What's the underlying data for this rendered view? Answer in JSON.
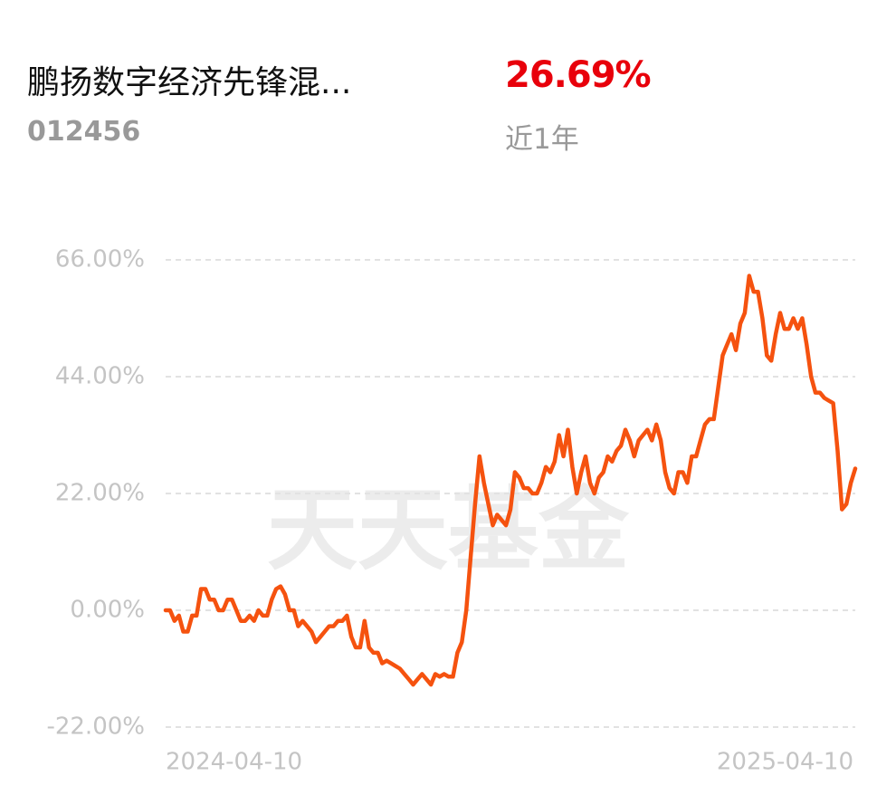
{
  "header": {
    "title": "鹏扬数字经济先锋混...",
    "code": "012456",
    "return": "26.69%",
    "period": "近1年"
  },
  "watermark": "天天基金",
  "chart_data": {
    "type": "line",
    "categories": [
      "2024-04-10",
      null,
      null,
      null,
      null,
      null,
      null,
      null,
      null,
      null,
      null,
      null,
      null,
      null,
      null,
      null,
      null,
      null,
      null,
      null,
      null,
      null,
      null,
      null,
      null,
      null,
      null,
      null,
      null,
      null,
      null,
      null,
      null,
      null,
      null,
      null,
      null,
      null,
      null,
      null,
      null,
      null,
      null,
      null,
      null,
      null,
      null,
      null,
      null,
      null,
      null,
      null,
      null,
      null,
      null,
      null,
      null,
      null,
      null,
      null,
      null,
      null,
      null,
      null,
      null,
      null,
      null,
      null,
      null,
      null,
      null,
      null,
      null,
      null,
      null,
      null,
      null,
      null,
      null,
      null,
      null,
      null,
      null,
      null,
      null,
      null,
      null,
      null,
      null,
      null,
      null,
      null,
      null,
      null,
      null,
      null,
      null,
      null,
      null,
      null,
      null,
      null,
      null,
      null,
      null,
      null,
      null,
      null,
      null,
      null,
      null,
      null,
      null,
      null,
      null,
      null,
      null,
      null,
      null,
      null,
      null,
      null,
      null,
      null,
      null,
      null,
      null,
      null,
      null,
      null,
      null,
      null,
      null,
      null,
      null,
      null,
      null,
      null,
      null,
      null,
      null,
      null,
      null,
      null,
      null,
      null,
      null,
      null,
      null,
      null,
      null,
      null,
      null,
      null,
      null,
      null,
      "2025-04-10"
    ],
    "series": [
      {
        "color": "#f5520f",
        "values": [
          0,
          0,
          -2,
          -1,
          -4,
          -4,
          -1,
          -1,
          4,
          4,
          2,
          2,
          0,
          0,
          2,
          2,
          0,
          -2,
          -2,
          -1,
          -2,
          0,
          -1,
          -1,
          2,
          4,
          4.5,
          3,
          0,
          0,
          -3,
          -2,
          -3,
          -4,
          -6,
          -5,
          -4,
          -3,
          -3,
          -2,
          -2,
          -1,
          -5,
          -7,
          -7,
          -2,
          -7,
          -8,
          -8,
          -10,
          -9.5,
          -10,
          -10.5,
          -11,
          -12,
          -13,
          -14,
          -13,
          -12,
          -13,
          -14,
          -12,
          -12.5,
          -12,
          -12.5,
          -12.5,
          -8,
          -6,
          0,
          10,
          20,
          29,
          24,
          20,
          16,
          18,
          17,
          16,
          19,
          26,
          25,
          23,
          23,
          22,
          22,
          24,
          27,
          26,
          28,
          33,
          29,
          34,
          27,
          22,
          26,
          29,
          24,
          22,
          25,
          26,
          29,
          28,
          30,
          31,
          34,
          32,
          29,
          32,
          33,
          34,
          32,
          35,
          32,
          26,
          23,
          22,
          26,
          26,
          24,
          29,
          29,
          32,
          35,
          36,
          36,
          42,
          48,
          50,
          52,
          49,
          54,
          56,
          63,
          60,
          60,
          55,
          48,
          47,
          52,
          56,
          53,
          53,
          55,
          53,
          55,
          50,
          44,
          41,
          41,
          40,
          39.5,
          39,
          30,
          19,
          20,
          24,
          26.69
        ]
      }
    ],
    "ylim": [
      -22,
      66
    ],
    "yticks": [
      {
        "value": -22,
        "label": "-22.00%"
      },
      {
        "value": 0,
        "label": "0.00%"
      },
      {
        "value": 22,
        "label": "22.00%"
      },
      {
        "value": 44,
        "label": "44.00%"
      },
      {
        "value": 66,
        "label": "66.00%"
      }
    ],
    "grid": true
  }
}
